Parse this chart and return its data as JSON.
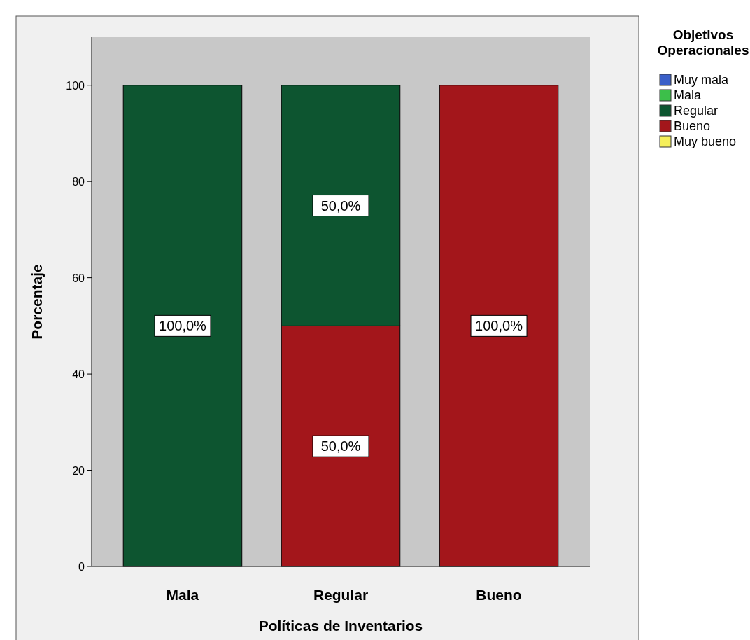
{
  "chart_data": {
    "type": "bar",
    "stacked": true,
    "xlabel": "Políticas de Inventarios",
    "ylabel": "Porcentaje",
    "legend_title": "Objetivos Operacionales",
    "legend": "top right",
    "categories": [
      "Mala",
      "Regular",
      "Bueno"
    ],
    "ylim": [
      0,
      110
    ],
    "yticks": [
      0,
      20,
      40,
      60,
      80,
      100
    ],
    "series": [
      {
        "name": "Muy bueno",
        "color": "#f5ef5a",
        "values": [
          0,
          0,
          0
        ],
        "value_labels": [
          null,
          null,
          null
        ]
      },
      {
        "name": "Bueno",
        "color": "#a3161b",
        "values": [
          0,
          50,
          100
        ],
        "value_labels": [
          null,
          "50,0%",
          "100,0%"
        ]
      },
      {
        "name": "Regular",
        "color": "#0d5530",
        "values": [
          100,
          50,
          0
        ],
        "value_labels": [
          "100,0%",
          "50,0%",
          null
        ]
      },
      {
        "name": "Mala",
        "color": "#3cbf4a",
        "values": [
          0,
          0,
          0
        ],
        "value_labels": [
          null,
          null,
          null
        ]
      },
      {
        "name": "Muy mala",
        "color": "#3a5fc8",
        "values": [
          0,
          0,
          0
        ],
        "value_labels": [
          null,
          null,
          null
        ]
      }
    ]
  }
}
